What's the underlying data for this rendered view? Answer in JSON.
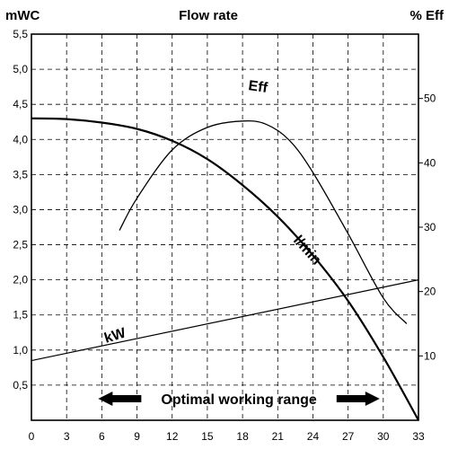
{
  "chart_data": {
    "type": "line",
    "title": "Flow rate",
    "ylabel_left": "mWC",
    "ylabel_right": "% Eff",
    "x_ticks": [
      "0",
      "3",
      "6",
      "9",
      "12",
      "15",
      "18",
      "21",
      "24",
      "27",
      "30",
      "33"
    ],
    "y_left_ticks": [
      "0,5",
      "1,0",
      "1,5",
      "2,0",
      "2,5",
      "3,0",
      "3,5",
      "4,0",
      "4,5",
      "5,0",
      "5,5"
    ],
    "y_right_ticks": [
      "10",
      "20",
      "30",
      "40",
      "50"
    ],
    "xlim": [
      0,
      33
    ],
    "ylim_left": [
      0,
      5.5
    ],
    "ylim_right": [
      0,
      60
    ],
    "grid": true,
    "series": [
      {
        "name": "l/min",
        "axis": "left",
        "x": [
          0,
          3,
          6,
          9,
          12,
          15,
          18,
          21,
          24,
          27,
          30,
          33
        ],
        "y": [
          4.3,
          4.29,
          4.24,
          4.15,
          3.98,
          3.72,
          3.35,
          2.9,
          2.35,
          1.7,
          0.9,
          0.0
        ]
      },
      {
        "name": "Eff",
        "axis": "right",
        "x": [
          7.5,
          9,
          12,
          15,
          18,
          20,
          22,
          24,
          27,
          30,
          32
        ],
        "y": [
          29.5,
          34.5,
          42,
          45.5,
          46.5,
          46,
          43.5,
          38.5,
          29,
          19,
          15
        ]
      },
      {
        "name": "kW",
        "axis": "left",
        "x": [
          0,
          33
        ],
        "y": [
          0.85,
          2.0
        ]
      }
    ],
    "annotations": {
      "range_label": "Optimal working range",
      "range_start": 6,
      "range_end": 30
    }
  }
}
